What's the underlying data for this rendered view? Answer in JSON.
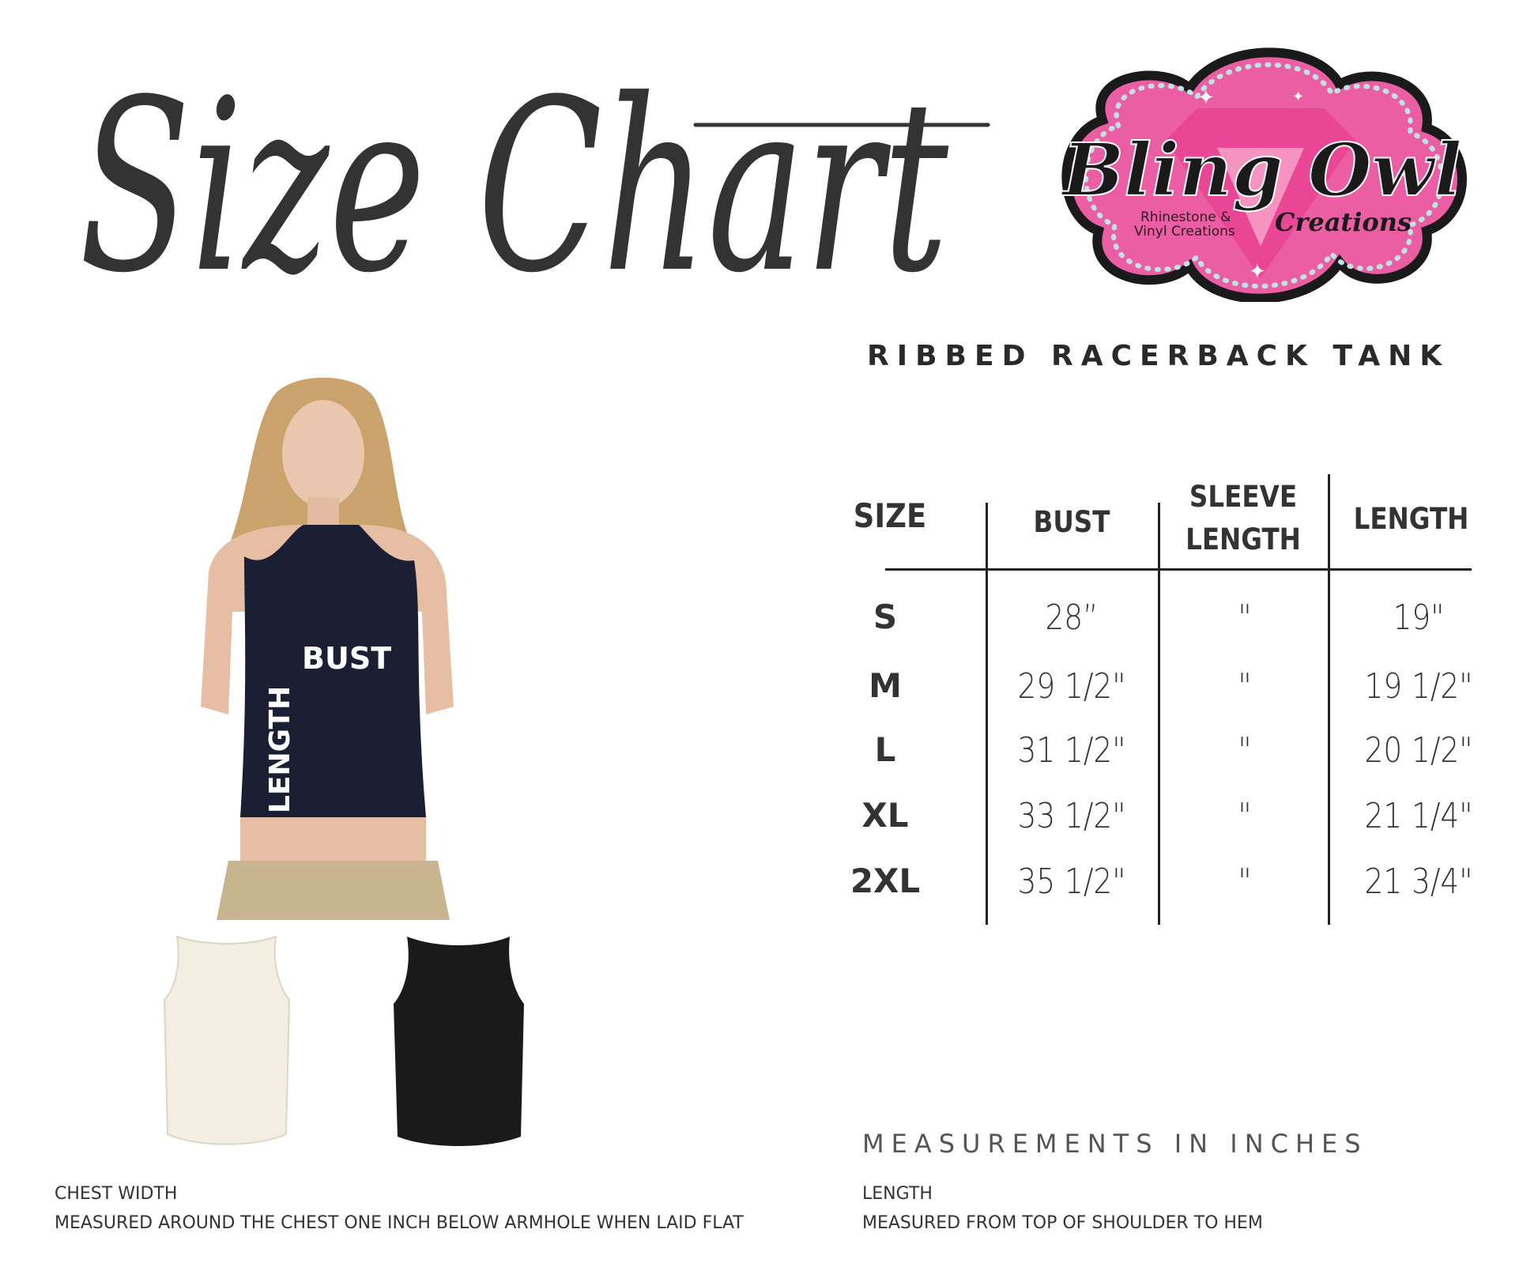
{
  "header": {
    "title": "Size Chart",
    "product": "RIBBED RACERBACK TANK"
  },
  "logo": {
    "brand": "Bling Owl",
    "brand_sub": "Creations",
    "tagline_line1": "Rhinestone &",
    "tagline_line2": "Vinyl Creations",
    "colors": {
      "pink": "#ec5ea4",
      "border": "#1a1a1a",
      "rhinestone": "#bfe3e0"
    }
  },
  "model_labels": {
    "bust": "BUST",
    "length": "LENGTH"
  },
  "table": {
    "headers": {
      "size": "SIZE",
      "bust": "BUST",
      "sleeve_line1": "SLEEVE",
      "sleeve_line2": "LENGTH",
      "length": "LENGTH"
    },
    "rows": [
      {
        "size": "S",
        "bust": "28”",
        "sleeve": "\"",
        "length": "19\""
      },
      {
        "size": "M",
        "bust": "29 1/2\"",
        "sleeve": "\"",
        "length": "19 1/2\""
      },
      {
        "size": "L",
        "bust": "31 1/2\"",
        "sleeve": "\"",
        "length": "20 1/2\""
      },
      {
        "size": "XL",
        "bust": "33 1/2\"",
        "sleeve": "\"",
        "length": "21 1/4\""
      },
      {
        "size": "2XL",
        "bust": "35 1/2\"",
        "sleeve": "\"",
        "length": "21 3/4\""
      }
    ]
  },
  "units_note": "MEASUREMENTS IN INCHES",
  "notes": {
    "chest_title": "CHEST WIDTH",
    "chest_desc": "MEASURED AROUND THE CHEST ONE INCH BELOW ARMHOLE WHEN LAID FLAT",
    "length_title": "LENGTH",
    "length_desc": "MEASURED FROM TOP OF SHOULDER TO HEM"
  },
  "garment_colors": {
    "navy": "#1b1f33",
    "cream": "#f3eee2",
    "black": "#1a1a1a",
    "khaki": "#c8b48e"
  }
}
